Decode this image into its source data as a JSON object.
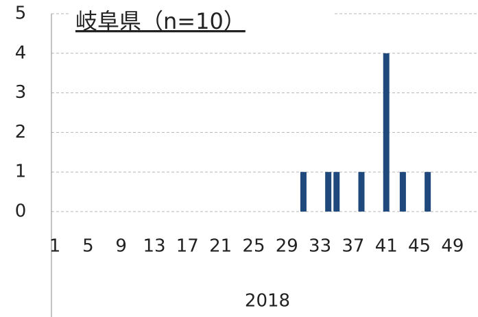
{
  "chart_data": {
    "type": "bar",
    "title": "岐阜県（n=10）",
    "x_label": "2018",
    "categories": [
      "1",
      null,
      null,
      null,
      "5",
      null,
      null,
      null,
      "9",
      null,
      null,
      null,
      "13",
      null,
      null,
      null,
      "17",
      null,
      null,
      null,
      "21",
      null,
      null,
      null,
      "25",
      null,
      null,
      null,
      "29",
      null,
      null,
      null,
      "33",
      null,
      null,
      null,
      "37",
      null,
      null,
      null,
      "41",
      null,
      null,
      null,
      "45",
      null,
      null,
      null,
      "49",
      null,
      null,
      null
    ],
    "values": [
      0,
      0,
      0,
      0,
      0,
      0,
      0,
      0,
      0,
      0,
      0,
      0,
      0,
      0,
      0,
      0,
      0,
      0,
      0,
      0,
      0,
      0,
      0,
      0,
      0,
      0,
      0,
      0,
      0,
      0,
      1,
      0,
      0,
      1,
      1,
      0,
      0,
      1,
      0,
      0,
      4,
      0,
      1,
      0,
      0,
      1,
      0,
      0,
      0,
      0,
      0,
      0
    ],
    "color": "#1f497d",
    "ylim": [
      0,
      5
    ],
    "yticks": [
      0,
      1,
      2,
      3,
      4,
      5
    ],
    "grid": true
  }
}
